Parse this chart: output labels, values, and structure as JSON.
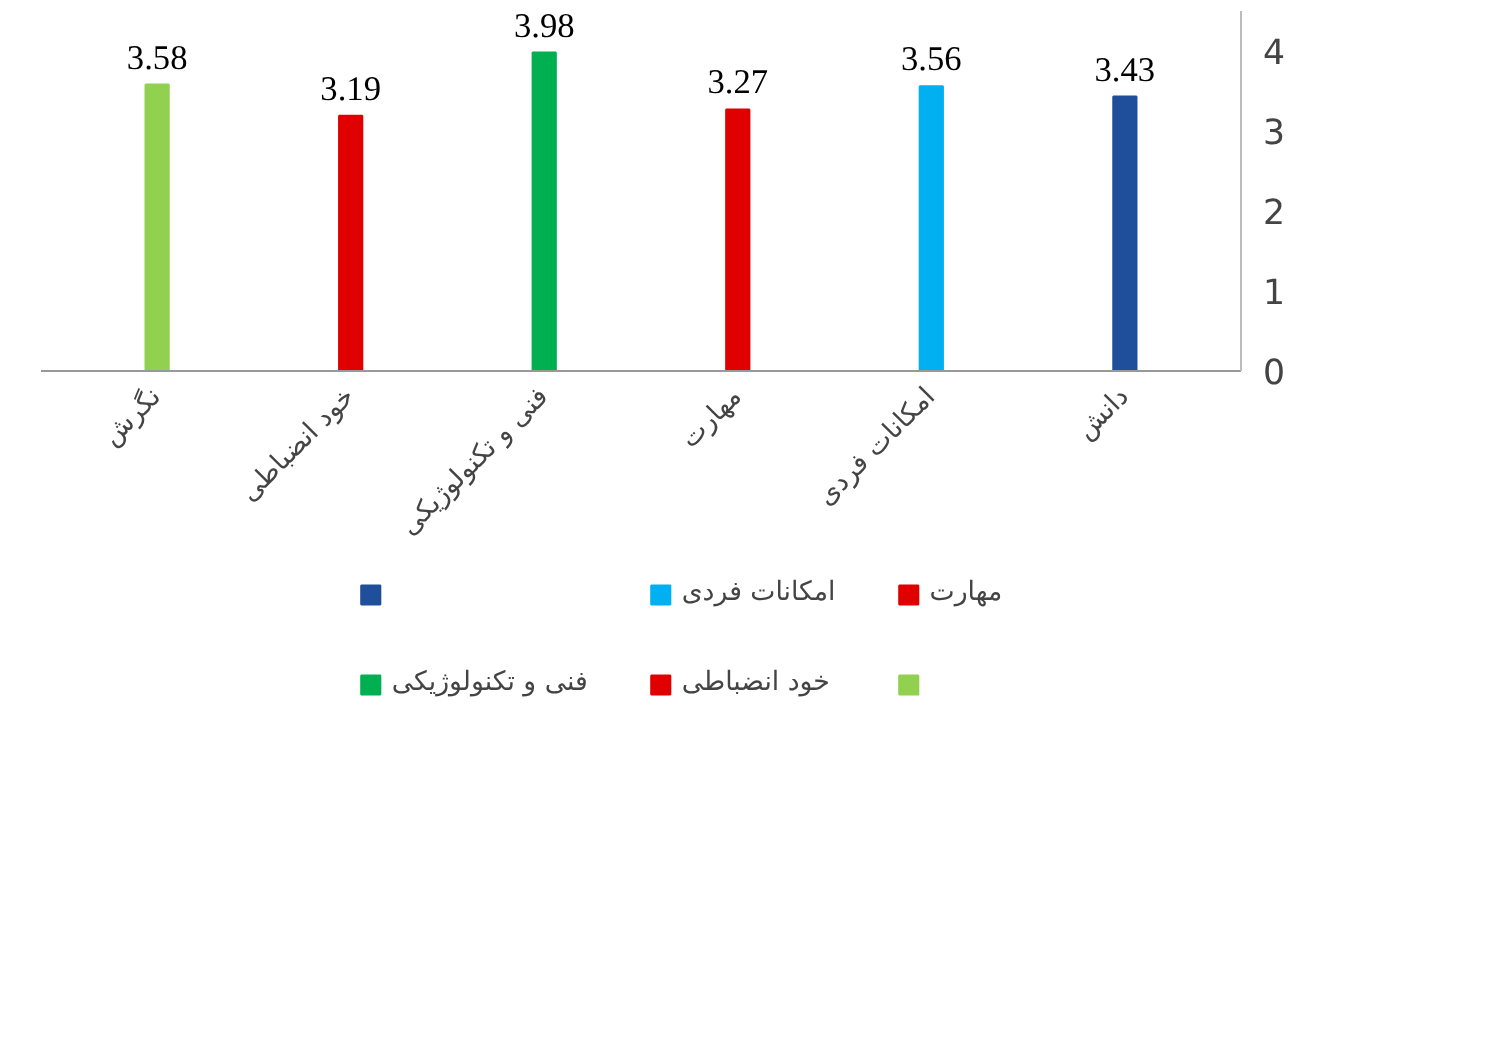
{
  "chart_data": {
    "type": "bar",
    "categories": [
      "نگرش",
      "خود انضباطی",
      "فنی و تکنولوژیکی",
      "مهارت",
      "امکانات فردی",
      "دانش"
    ],
    "series": [
      {
        "color": "#1f4e9a",
        "values": [
          null,
          null,
          null,
          null,
          null,
          3.43
        ]
      },
      {
        "name": "امکانات فردی",
        "color": "#00b0f0",
        "values": [
          null,
          null,
          null,
          null,
          3.56,
          null
        ]
      },
      {
        "name": "مهارت",
        "color": "#e00000",
        "values": [
          null,
          null,
          null,
          3.27,
          null,
          null
        ]
      },
      {
        "name": "فنی و تکنولوژیکی",
        "color": "#00b050",
        "values": [
          null,
          null,
          3.98,
          null,
          null,
          null
        ]
      },
      {
        "name": "خود انضباطی",
        "color": "#e00000",
        "values": [
          null,
          3.19,
          null,
          null,
          null,
          null
        ]
      },
      {
        "color": "#92d050",
        "values": [
          3.58,
          null,
          null,
          null,
          null,
          null
        ]
      }
    ],
    "ylim": [
      0,
      4.5
    ],
    "yticks": [
      0,
      1,
      2,
      3,
      4
    ],
    "data_labels": true,
    "grid": false,
    "legend": "bottom"
  }
}
